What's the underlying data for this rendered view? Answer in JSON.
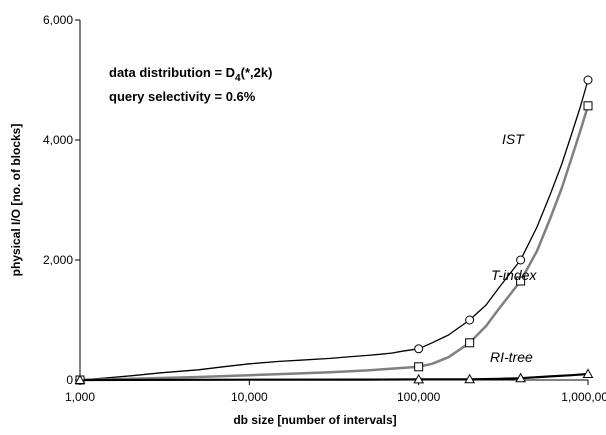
{
  "chart_data": {
    "type": "line",
    "xlabel": "db size [number of intervals]",
    "ylabel": "physical I/O [no. of blocks]",
    "x_scale": "log",
    "xlim": [
      1000,
      1000000
    ],
    "ylim": [
      0,
      6000
    ],
    "x_ticks": [
      {
        "value": 1000,
        "label": "1,000"
      },
      {
        "value": 10000,
        "label": "10,000"
      },
      {
        "value": 100000,
        "label": "100,000"
      },
      {
        "value": 1000000,
        "label": "1,000,000"
      }
    ],
    "y_ticks": [
      {
        "value": 0,
        "label": "0"
      },
      {
        "value": 2000,
        "label": "2,000"
      },
      {
        "value": 4000,
        "label": "4,000"
      },
      {
        "value": 6000,
        "label": "6,000"
      }
    ],
    "annotations": {
      "line1_prefix": "data distribution = D",
      "line1_sub": "4",
      "line1_suffix": "(*,2k)",
      "line2": "query selectivity = 0.6%"
    },
    "grid": false,
    "series": [
      {
        "name": "IST",
        "color": "#000000",
        "marker": "circle",
        "x": [
          1000,
          1500,
          2000,
          3000,
          5000,
          7000,
          10000,
          15000,
          20000,
          30000,
          40000,
          50000,
          60000,
          70000,
          80000,
          100000,
          120000,
          150000,
          200000,
          250000,
          300000,
          400000,
          500000,
          600000,
          700000,
          800000,
          900000,
          1000000
        ],
        "values": [
          0,
          40,
          70,
          120,
          170,
          220,
          270,
          310,
          330,
          360,
          390,
          410,
          430,
          450,
          480,
          520,
          620,
          750,
          1000,
          1250,
          1550,
          2000,
          2550,
          3100,
          3600,
          4100,
          4550,
          5000
        ],
        "marker_x": [
          1000,
          100000,
          200000,
          400000,
          1000000
        ],
        "marker_values": [
          0,
          520,
          1000,
          2000,
          5000
        ]
      },
      {
        "name": "T-index",
        "color": "#808080",
        "marker": "square",
        "x": [
          1000,
          2000,
          5000,
          10000,
          20000,
          30000,
          50000,
          70000,
          100000,
          120000,
          150000,
          200000,
          250000,
          300000,
          400000,
          500000,
          600000,
          700000,
          800000,
          900000,
          1000000
        ],
        "values": [
          0,
          20,
          50,
          80,
          110,
          130,
          160,
          190,
          220,
          270,
          380,
          620,
          900,
          1200,
          1650,
          2150,
          2700,
          3200,
          3700,
          4150,
          4570
        ],
        "marker_x": [
          1000,
          100000,
          200000,
          400000,
          1000000
        ],
        "marker_values": [
          0,
          220,
          620,
          1650,
          4570
        ]
      },
      {
        "name": "RI-tree",
        "color": "#000000",
        "marker": "triangle",
        "x": [
          1000,
          5000,
          10000,
          50000,
          100000,
          200000,
          300000,
          400000,
          600000,
          800000,
          1000000
        ],
        "values": [
          0,
          3,
          5,
          7,
          10,
          12,
          20,
          30,
          60,
          80,
          100
        ],
        "marker_x": [
          1000,
          100000,
          200000,
          400000,
          1000000
        ],
        "marker_values": [
          0,
          10,
          12,
          30,
          100
        ]
      }
    ]
  }
}
